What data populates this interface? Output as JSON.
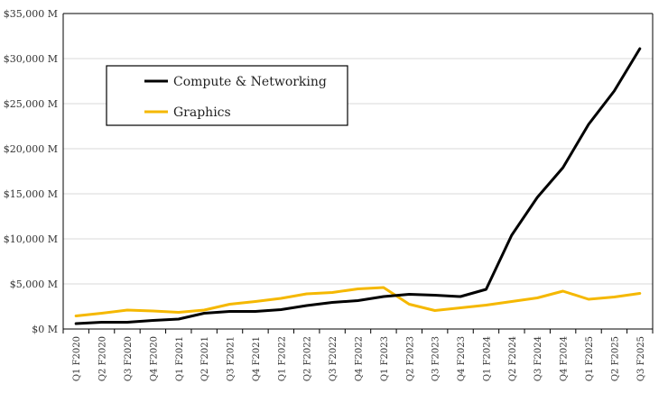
{
  "chart_data": {
    "type": "line",
    "title": "",
    "xlabel": "",
    "ylabel": "",
    "ylim": [
      0,
      35000
    ],
    "y_ticks": [
      0,
      5000,
      10000,
      15000,
      20000,
      25000,
      30000,
      35000
    ],
    "y_tick_labels": [
      "$0 M",
      "$5,000 M",
      "$10,000 M",
      "$15,000 M",
      "$20,000 M",
      "$25,000 M",
      "$30,000 M",
      "$35,000 M"
    ],
    "grid": true,
    "legend_position": "upper-left",
    "categories": [
      "Q1 F2020",
      "Q2 F2020",
      "Q3 F2020",
      "Q4 F2020",
      "Q1 F2021",
      "Q2 F2021",
      "Q3 F2021",
      "Q4 F2021",
      "Q1 F2022",
      "Q2 F2022",
      "Q3 F2022",
      "Q4 F2022",
      "Q1 F2023",
      "Q2 F2023",
      "Q3 F2023",
      "Q4 F2023",
      "Q1 F2024",
      "Q2 F2024",
      "Q3 F2024",
      "Q4 F2024",
      "Q1 F2025",
      "Q2 F2025",
      "Q3 F2025"
    ],
    "series": [
      {
        "name": "Compute & Networking",
        "color": "#000000",
        "values": [
          600,
          750,
          750,
          950,
          1100,
          1750,
          1950,
          1950,
          2150,
          2600,
          2950,
          3150,
          3600,
          3850,
          3750,
          3600,
          4400,
          10400,
          14600,
          17900,
          22700,
          26400,
          31100
        ]
      },
      {
        "name": "Graphics",
        "color": "#f5b800",
        "values": [
          1450,
          1750,
          2100,
          2000,
          1850,
          2100,
          2750,
          3050,
          3400,
          3900,
          4050,
          4450,
          4600,
          2750,
          2050,
          2350,
          2650,
          3050,
          3450,
          4200,
          3300,
          3550,
          3950
        ]
      }
    ]
  }
}
